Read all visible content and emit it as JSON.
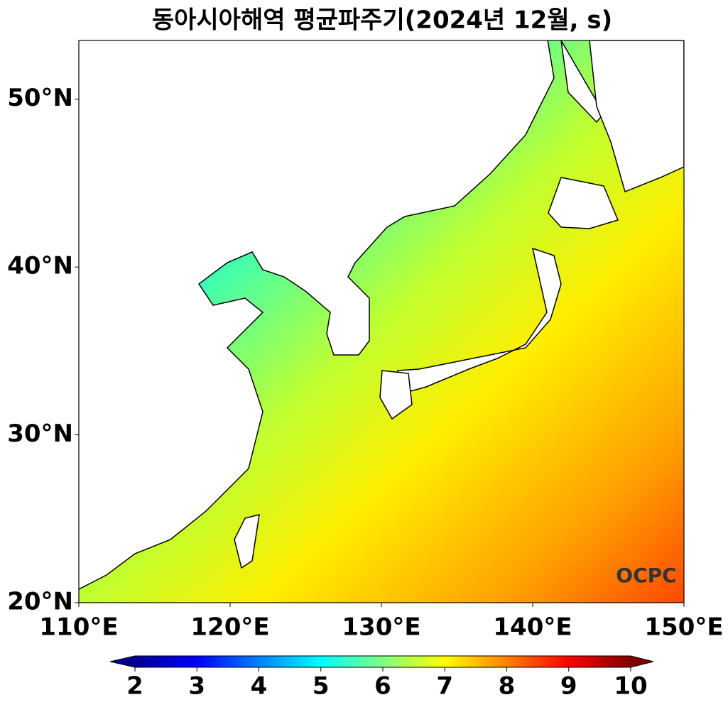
{
  "chart_data": {
    "type": "map",
    "title": "동아시아해역 평균파주기(2024년 12월, s)",
    "xlim": [
      110,
      150
    ],
    "ylim": [
      20,
      53.5
    ],
    "xticks": [
      {
        "value": 110,
        "label": "110°E"
      },
      {
        "value": 120,
        "label": "120°E"
      },
      {
        "value": 130,
        "label": "130°E"
      },
      {
        "value": 140,
        "label": "140°E"
      },
      {
        "value": 150,
        "label": "150°E"
      }
    ],
    "yticks": [
      {
        "value": 20,
        "label": "20°N"
      },
      {
        "value": 30,
        "label": "30°N"
      },
      {
        "value": 40,
        "label": "40°N"
      },
      {
        "value": 50,
        "label": "50°N"
      }
    ],
    "colorbar": {
      "range": [
        2,
        10
      ],
      "ticks": [
        2,
        3,
        4,
        5,
        6,
        7,
        8,
        9,
        10
      ]
    },
    "logo": "OCPC"
  }
}
